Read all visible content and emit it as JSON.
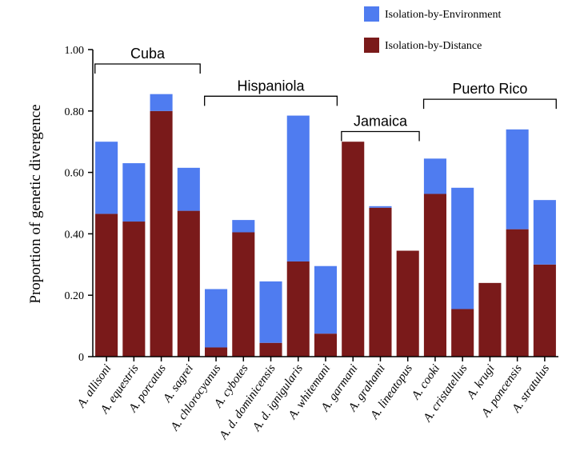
{
  "chart_data": {
    "type": "bar",
    "stacked": true,
    "ylabel": "Proportion of genetic divergence",
    "ylim": [
      0,
      1.0
    ],
    "yticks": [
      "0",
      "0.20",
      "0.40",
      "0.60",
      "0.80",
      "1.00"
    ],
    "grid": false,
    "legend_position": "top-right",
    "categories": [
      "A. allisoni",
      "A. equestris",
      "A. porcatus",
      "A. sagrei",
      "A. chlorocyanus",
      "A. cybotes",
      "A. d. dominicensis",
      "A. d. ignigularis",
      "A. whitemani",
      "A. garmani",
      "A. grahami",
      "A. lineatopus",
      "A. cooki",
      "A. cristatellus",
      "A. krugi",
      "A. poncensis",
      "A. stratulus"
    ],
    "series": [
      {
        "name": "Isolation-by-Distance",
        "color": "#7a1a1a",
        "values": [
          0.465,
          0.44,
          0.8,
          0.475,
          0.03,
          0.405,
          0.045,
          0.31,
          0.075,
          0.7,
          0.485,
          0.345,
          0.53,
          0.155,
          0.24,
          0.415,
          0.3
        ]
      },
      {
        "name": "Isolation-by-Environment",
        "color": "#4f7cf0",
        "values": [
          0.235,
          0.19,
          0.055,
          0.14,
          0.19,
          0.04,
          0.2,
          0.475,
          0.22,
          0.0,
          0.005,
          0.0,
          0.115,
          0.395,
          0.0,
          0.325,
          0.21
        ]
      }
    ],
    "legend": [
      {
        "label": "Isolation-by-Environment",
        "color": "#4f7cf0"
      },
      {
        "label": "Isolation-by-Distance",
        "color": "#7a1a1a"
      }
    ],
    "groups": [
      {
        "label": "Cuba",
        "from": 0,
        "to": 3,
        "level": 1.0
      },
      {
        "label": "Hispaniola",
        "from": 4,
        "to": 8,
        "level": 0.895
      },
      {
        "label": "Jamaica",
        "from": 9,
        "to": 11,
        "level": 0.78
      },
      {
        "label": "Puerto Rico",
        "from": 12,
        "to": 16,
        "level": 0.885
      }
    ]
  }
}
